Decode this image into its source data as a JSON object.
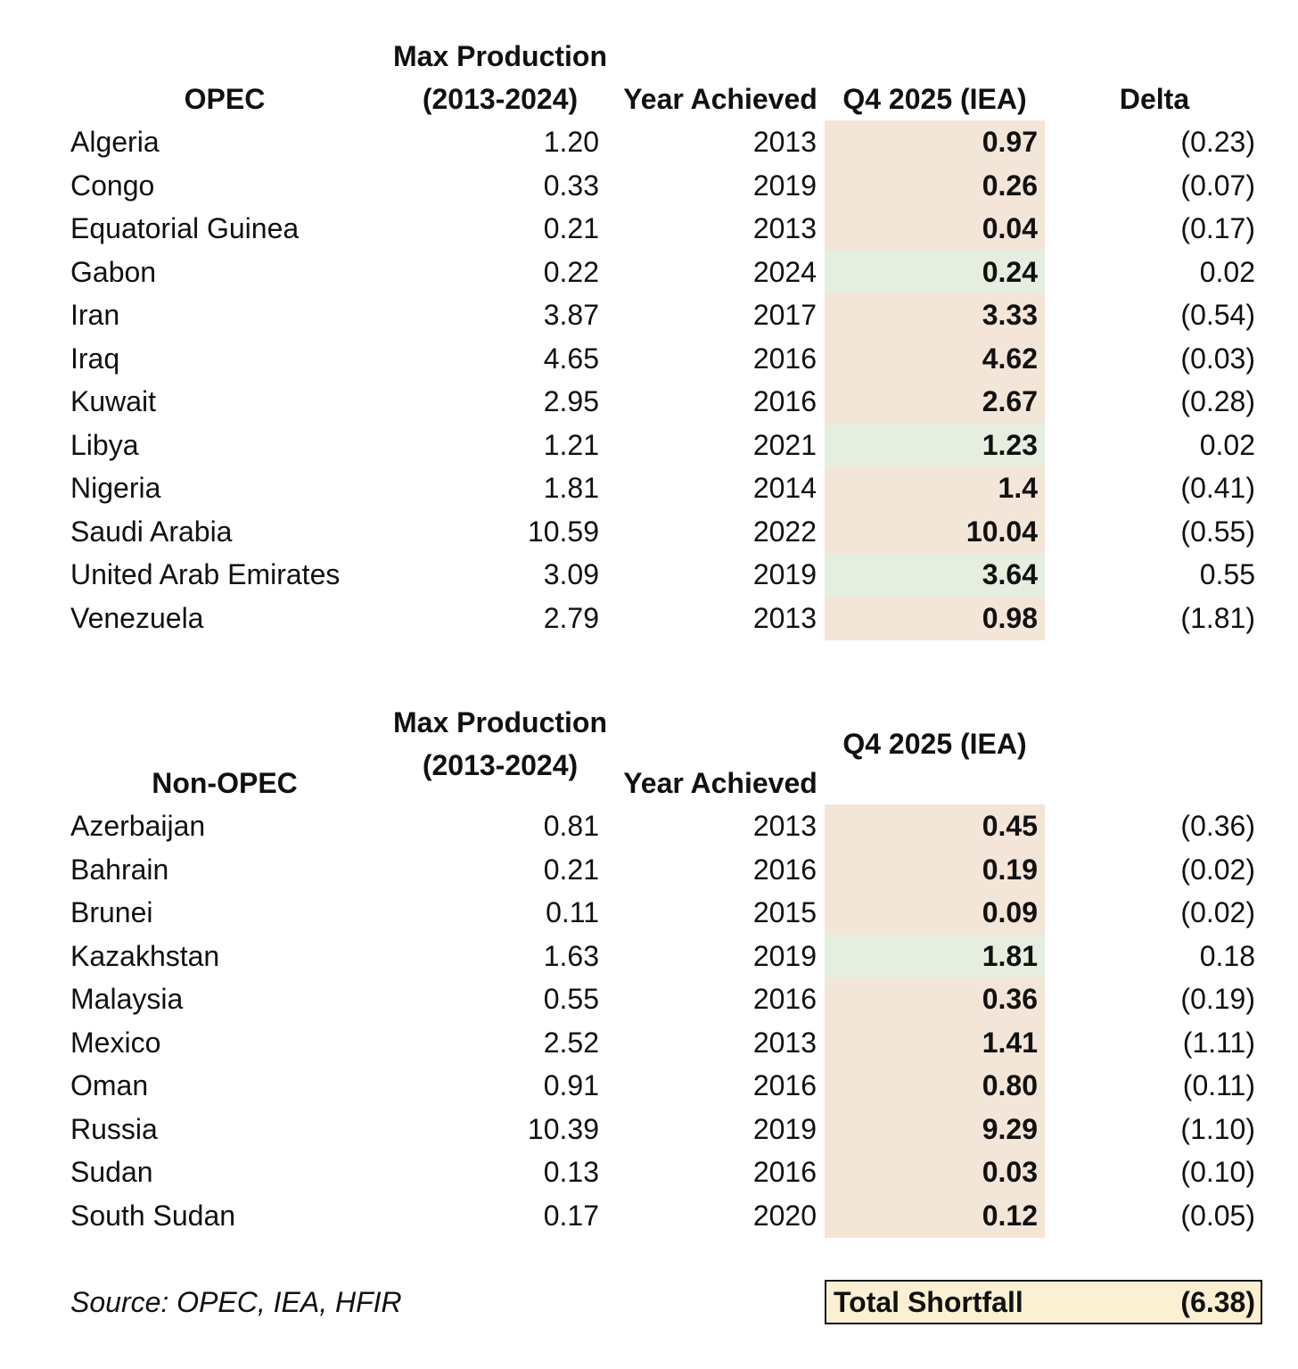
{
  "opec": {
    "headers": {
      "group": "OPEC",
      "max_line1": "Max Production",
      "max_line2": "(2013-2024)",
      "year": "Year Achieved",
      "q4": "Q4 2025 (IEA)",
      "delta": "Delta"
    },
    "rows": [
      {
        "name": "Algeria",
        "max": "1.20",
        "year": "2013",
        "q4": "0.97",
        "delta": "(0.23)",
        "status": "shortfall"
      },
      {
        "name": "Congo",
        "max": "0.33",
        "year": "2019",
        "q4": "0.26",
        "delta": "(0.07)",
        "status": "shortfall"
      },
      {
        "name": "Equatorial Guinea",
        "max": "0.21",
        "year": "2013",
        "q4": "0.04",
        "delta": "(0.17)",
        "status": "shortfall"
      },
      {
        "name": "Gabon",
        "max": "0.22",
        "year": "2024",
        "q4": "0.24",
        "delta": "0.02",
        "status": "surplus"
      },
      {
        "name": "Iran",
        "max": "3.87",
        "year": "2017",
        "q4": "3.33",
        "delta": "(0.54)",
        "status": "shortfall"
      },
      {
        "name": "Iraq",
        "max": "4.65",
        "year": "2016",
        "q4": "4.62",
        "delta": "(0.03)",
        "status": "shortfall"
      },
      {
        "name": "Kuwait",
        "max": "2.95",
        "year": "2016",
        "q4": "2.67",
        "delta": "(0.28)",
        "status": "shortfall"
      },
      {
        "name": "Libya",
        "max": "1.21",
        "year": "2021",
        "q4": "1.23",
        "delta": "0.02",
        "status": "surplus"
      },
      {
        "name": "Nigeria",
        "max": "1.81",
        "year": "2014",
        "q4": "1.4",
        "delta": "(0.41)",
        "status": "shortfall"
      },
      {
        "name": "Saudi Arabia",
        "max": "10.59",
        "year": "2022",
        "q4": "10.04",
        "delta": "(0.55)",
        "status": "shortfall"
      },
      {
        "name": "United Arab Emirates",
        "max": "3.09",
        "year": "2019",
        "q4": "3.64",
        "delta": "0.55",
        "status": "surplus"
      },
      {
        "name": "Venezuela",
        "max": "2.79",
        "year": "2013",
        "q4": "0.98",
        "delta": "(1.81)",
        "status": "shortfall"
      }
    ]
  },
  "non_opec": {
    "headers": {
      "group": "Non-OPEC",
      "max_line1": "Max Production",
      "max_line2": "(2013-2024)",
      "year": "Year Achieved",
      "q4": "Q4 2025 (IEA)"
    },
    "rows": [
      {
        "name": "Azerbaijan",
        "max": "0.81",
        "year": "2013",
        "q4": "0.45",
        "delta": "(0.36)",
        "status": "shortfall"
      },
      {
        "name": "Bahrain",
        "max": "0.21",
        "year": "2016",
        "q4": "0.19",
        "delta": "(0.02)",
        "status": "shortfall"
      },
      {
        "name": "Brunei",
        "max": "0.11",
        "year": "2015",
        "q4": "0.09",
        "delta": "(0.02)",
        "status": "shortfall"
      },
      {
        "name": "Kazakhstan",
        "max": "1.63",
        "year": "2019",
        "q4": "1.81",
        "delta": "0.18",
        "status": "surplus"
      },
      {
        "name": "Malaysia",
        "max": "0.55",
        "year": "2016",
        "q4": "0.36",
        "delta": "(0.19)",
        "status": "shortfall"
      },
      {
        "name": "Mexico",
        "max": "2.52",
        "year": "2013",
        "q4": "1.41",
        "delta": "(1.11)",
        "status": "shortfall"
      },
      {
        "name": "Oman",
        "max": "0.91",
        "year": "2016",
        "q4": "0.80",
        "delta": "(0.11)",
        "status": "shortfall"
      },
      {
        "name": "Russia",
        "max": "10.39",
        "year": "2019",
        "q4": "9.29",
        "delta": "(1.10)",
        "status": "shortfall"
      },
      {
        "name": "Sudan",
        "max": "0.13",
        "year": "2016",
        "q4": "0.03",
        "delta": "(0.10)",
        "status": "shortfall"
      },
      {
        "name": "South Sudan",
        "max": "0.17",
        "year": "2020",
        "q4": "0.12",
        "delta": "(0.05)",
        "status": "shortfall"
      }
    ]
  },
  "footer": {
    "source": "Source: OPEC, IEA, HFIR",
    "total_label": "Total Shortfall",
    "total_value": "(6.38)"
  },
  "colors": {
    "shortfall_fill": "#f3e5d8",
    "surplus_fill": "#e6efdf",
    "total_fill": "#fbf1d2"
  }
}
